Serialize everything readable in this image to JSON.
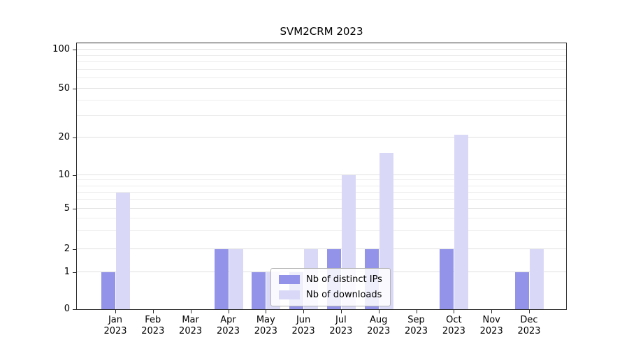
{
  "chart_data": {
    "type": "bar",
    "title": "SVM2CRM 2023",
    "yscale": "symlog",
    "ylim": [
      0,
      115
    ],
    "grid": true,
    "y_major_ticks": [
      0,
      1,
      2,
      5,
      10,
      20,
      50,
      100
    ],
    "y_minor_gridlines": [
      3,
      4,
      6,
      7,
      8,
      9,
      30,
      40,
      60,
      70,
      80,
      90
    ],
    "categories": [
      "Jan",
      "Feb",
      "Mar",
      "Apr",
      "May",
      "Jun",
      "Jul",
      "Aug",
      "Sep",
      "Oct",
      "Nov",
      "Dec"
    ],
    "x_year_label": "2023",
    "series": [
      {
        "name": "Nb of distinct IPs",
        "color": "#9393e9",
        "values": [
          1,
          0,
          0,
          2,
          1,
          1,
          2,
          2,
          0,
          2,
          0,
          1
        ]
      },
      {
        "name": "Nb of downloads",
        "color": "#d9d9f7",
        "values": [
          7,
          0,
          0,
          2,
          1,
          2,
          10,
          15,
          0,
          21,
          0,
          2
        ]
      }
    ],
    "legend": {
      "position": "lower center"
    }
  },
  "colors": {
    "background": "#ffffff",
    "gridline_major": "#e0e0e0",
    "gridline_minor": "#ededed",
    "axis": "#2b2b2b",
    "legend_border": "#b3b3b3"
  }
}
